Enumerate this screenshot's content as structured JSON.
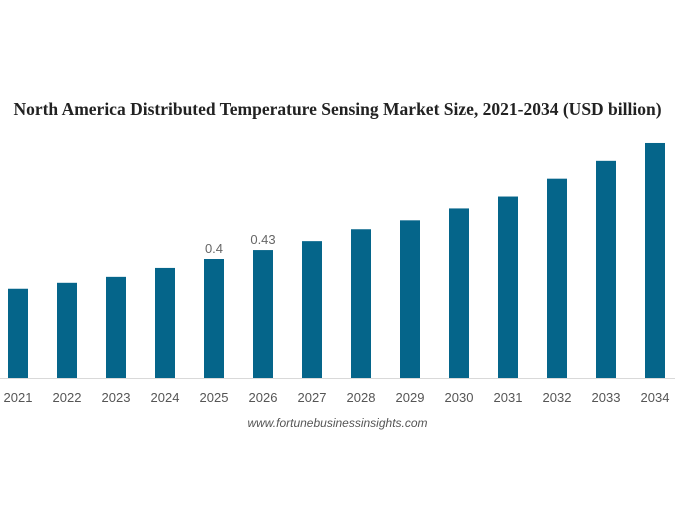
{
  "chart_data": {
    "type": "bar",
    "title": "North America Distributed Temperature Sensing Market Size, 2021-2034 (USD billion)",
    "xlabel": "",
    "ylabel": "",
    "categories": [
      "2021",
      "2022",
      "2023",
      "2024",
      "2025",
      "2026",
      "2027",
      "2028",
      "2029",
      "2030",
      "2031",
      "2032",
      "2033",
      "2034"
    ],
    "values": [
      0.3,
      0.32,
      0.34,
      0.37,
      0.4,
      0.43,
      0.46,
      0.5,
      0.53,
      0.57,
      0.61,
      0.67,
      0.73,
      0.79
    ],
    "data_labels": {
      "2025": "0.4",
      "2026": "0.43"
    },
    "ylim": [
      0,
      0.8
    ],
    "grid": false,
    "bar_color": "#05658a",
    "axis_color": "#d9d9d9"
  },
  "source": "www.fortunebusinessinsights.com"
}
